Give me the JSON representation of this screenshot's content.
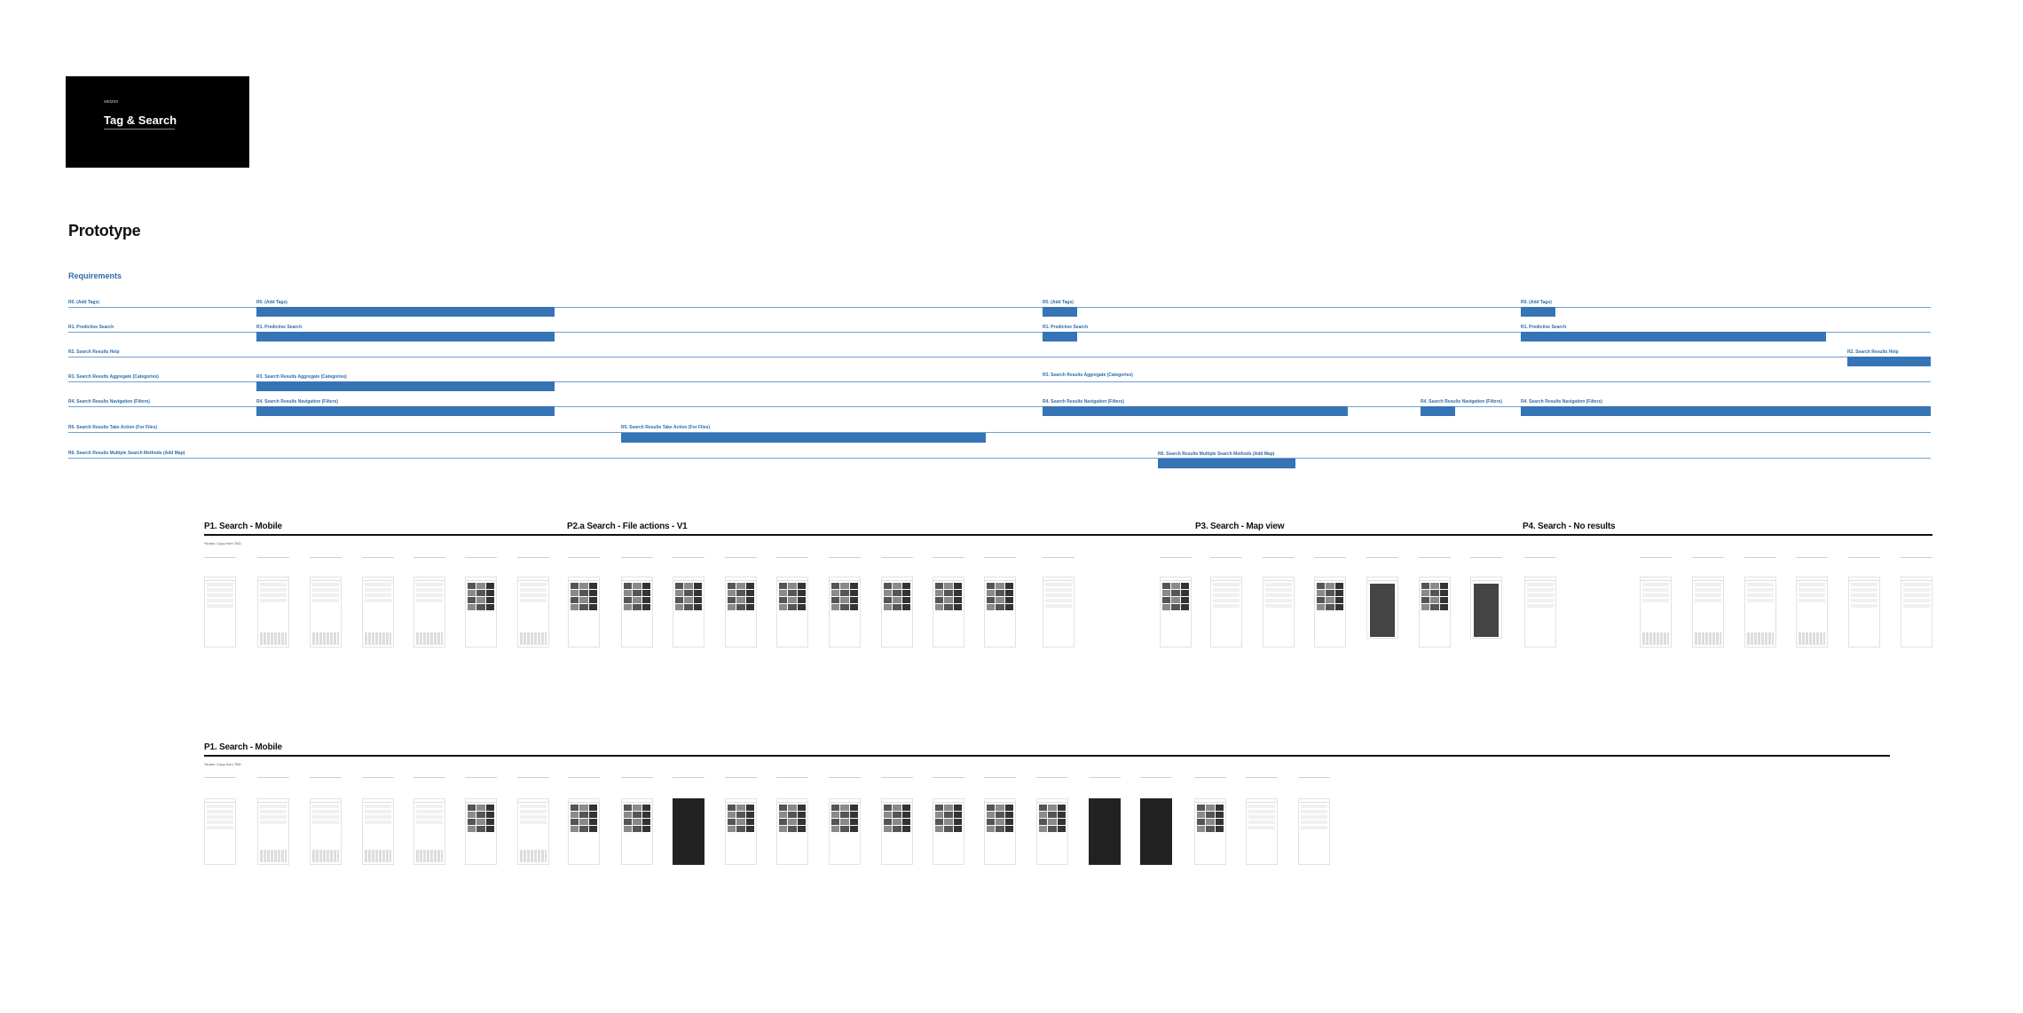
{
  "cover": {
    "brand": "verizon",
    "title": "Tag & Search"
  },
  "heading": "Prototype",
  "requirements": {
    "label": "Requirements",
    "rows": [
      {
        "id": "r0",
        "label": "R0. (Add Tags)"
      },
      {
        "id": "r1",
        "label": "R1. Predictive Search"
      },
      {
        "id": "r2",
        "label": "R2. Search Results Help"
      },
      {
        "id": "r3",
        "label": "R3. Search Results Aggregate (Categories)"
      },
      {
        "id": "r4",
        "label": "R4. Search Results Navigation (Filters)"
      },
      {
        "id": "r5",
        "label": "R5. Search Results Take Action (For Files)"
      },
      {
        "id": "r6",
        "label": "R6. Search Results Multiple Search Methods (Add Map)"
      }
    ],
    "segments": [
      {
        "row": 0,
        "label": "R0. (Add Tags)"
      },
      {
        "row": 0,
        "label": "R0. (Add Tags)"
      },
      {
        "row": 0,
        "label": "R0. (Add Tags)"
      },
      {
        "row": 1,
        "label": "R1. Predictive Search"
      },
      {
        "row": 1,
        "label": "R1. Predictive Search"
      },
      {
        "row": 1,
        "label": "R1. Predictive Search"
      },
      {
        "row": 2,
        "label": "R2. Search Results Help"
      },
      {
        "row": 3,
        "label": "R3. Search Results Aggregate (Categories)"
      },
      {
        "row": 3,
        "label": "R3. Search Results Aggregate (Categories)"
      },
      {
        "row": 4,
        "label": "R4. Search Results Navigation (Filters)"
      },
      {
        "row": 4,
        "label": "R4. Search Results Navigation (Filters)"
      },
      {
        "row": 4,
        "label": "R4. Search Results Navigation (Filters)"
      },
      {
        "row": 4,
        "label": "R4. Search Results Navigation (Filters)"
      },
      {
        "row": 5,
        "label": "R5. Search Results Take Action (For Files)"
      },
      {
        "row": 6,
        "label": "R6. Search Results Multiple Search Methods (Add Map)"
      }
    ]
  },
  "sections": [
    {
      "title": "P1. Search - Mobile"
    },
    {
      "title": "P2.a Search - File actions - V1"
    },
    {
      "title": "P3. Search - Map view"
    },
    {
      "title": "P4. Search - No results"
    },
    {
      "title": "P1. Search - Mobile"
    }
  ],
  "notes": {
    "note_1": "*Notes: Copy from TBD",
    "note_2": "*Notes: Copy from TBD"
  },
  "colors": {
    "accent": "#3574b5",
    "requirement_text": "#2d6ca8",
    "cover_bg": "#000000"
  }
}
